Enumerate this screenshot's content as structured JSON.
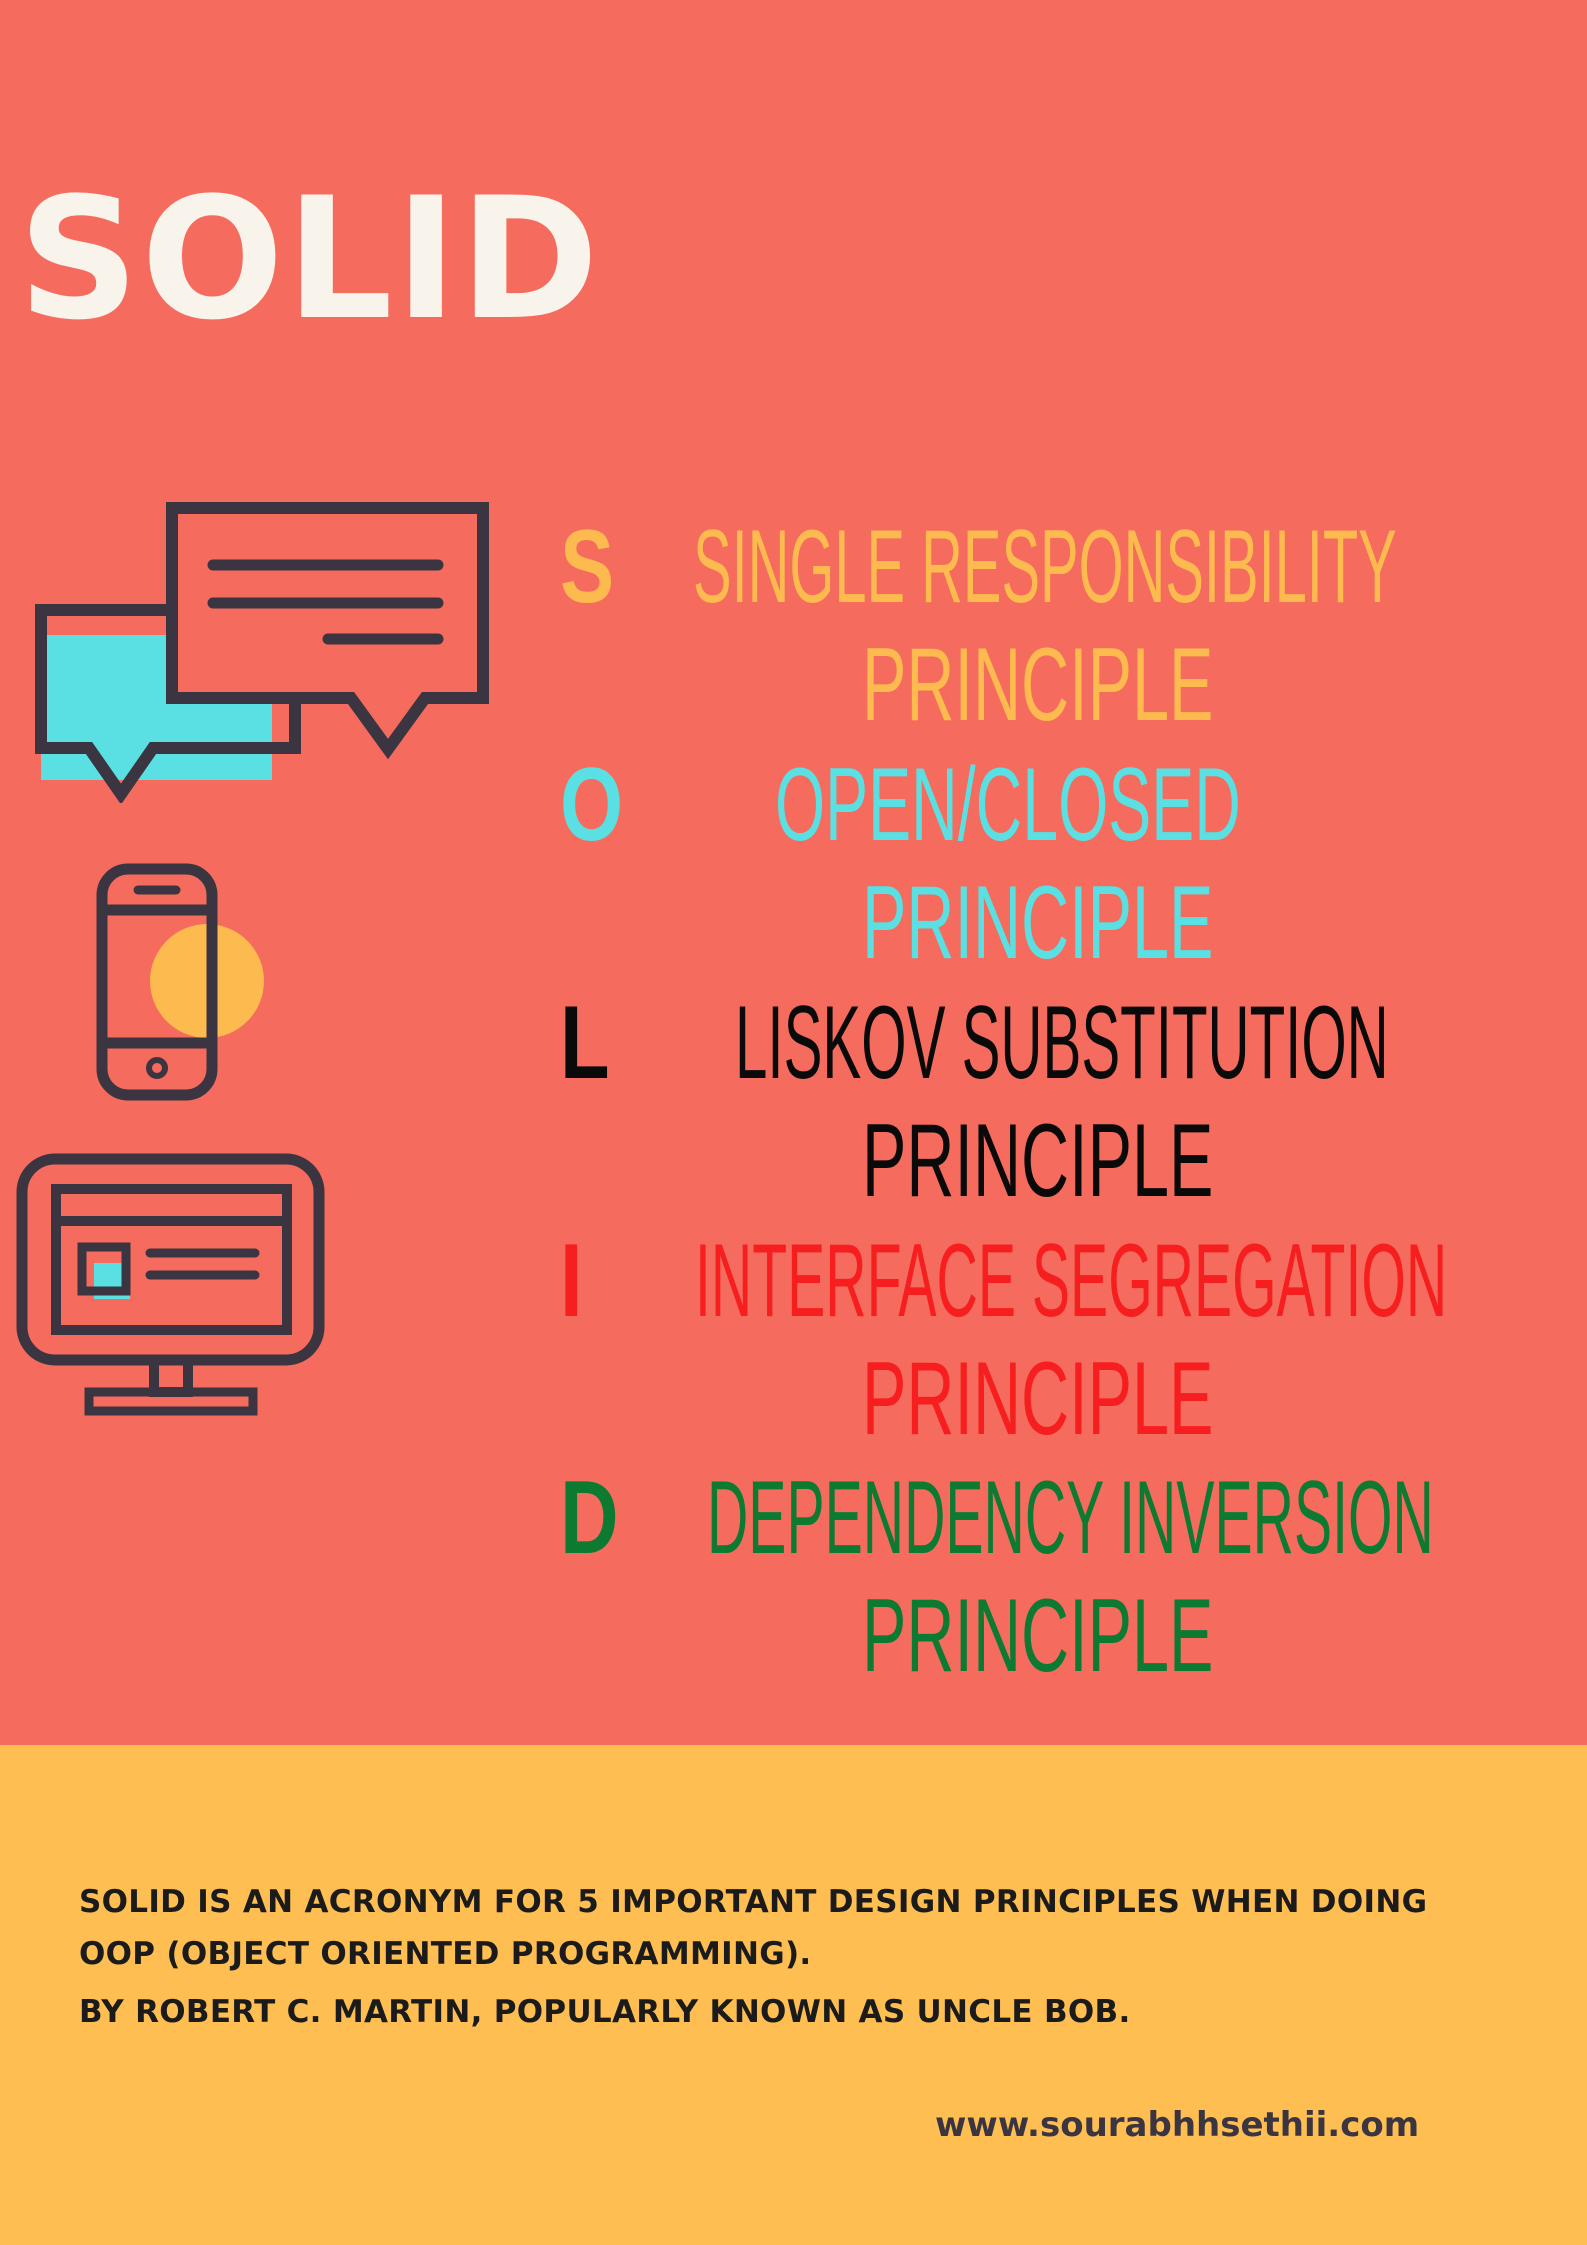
{
  "title": "SOLID",
  "principles": [
    {
      "letter": "S",
      "line1": "SINGLE  RESPONSIBILITY",
      "line2": "PRINCIPLE",
      "color": "#fdbb4f"
    },
    {
      "letter": "O",
      "line1": "OPEN/CLOSED",
      "line2": "PRINCIPLE",
      "color": "#5ae0e3"
    },
    {
      "letter": "L",
      "line1": "LISKOV SUBSTITUTION",
      "line2": "PRINCIPLE",
      "color": "#0a0a0a"
    },
    {
      "letter": "I",
      "line1": "INTERFACE SEGREGATION",
      "line2": "PRINCIPLE",
      "color": "#f61e1e"
    },
    {
      "letter": "D",
      "line1": "DEPENDENCY INVERSION",
      "line2": "PRINCIPLE",
      "color": "#0d7a32"
    }
  ],
  "footer": {
    "line1": "SOLID IS AN ACRONYM FOR 5 IMPORTANT DESIGN PRINCIPLES WHEN DOING",
    "line2": "OOP (OBJECT ORIENTED PROGRAMMING).",
    "line3": "BY ROBERT C. MARTIN, POPULARLY KNOWN AS UNCLE BOB.",
    "url": "www.sourabhhsethii.com"
  },
  "icons": [
    "chat-bubbles-icon",
    "smartphone-icon",
    "desktop-monitor-icon"
  ],
  "colors": {
    "background_top": "#f56b5d",
    "background_bottom": "#febe52",
    "title": "#f8f3eb",
    "icon_stroke": "#3b3541",
    "icon_cyan": "#5ae0e3",
    "icon_yellow": "#fdbb4f"
  }
}
